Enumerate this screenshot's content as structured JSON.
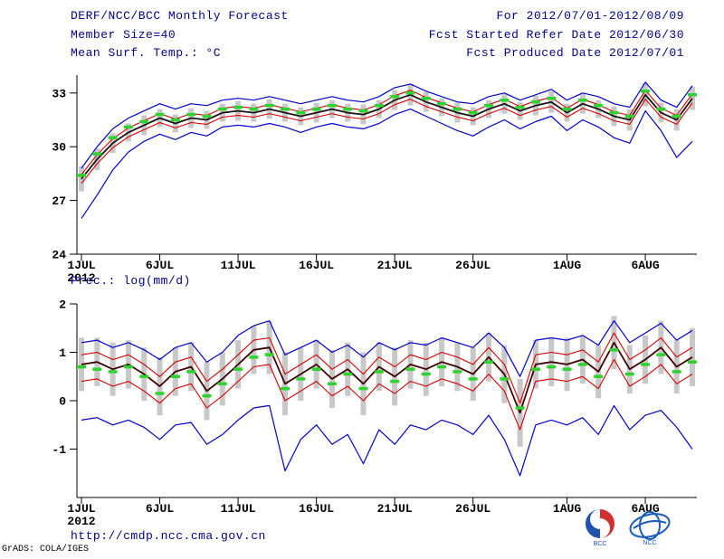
{
  "header": {
    "title": "DERF/NCC/BCC Monthly Forecast",
    "member_size": "Member Size=40",
    "right_line1": "For 2012/07/01-2012/08/09",
    "right_line2": "Fcst Started Refer Date 2012/06/30",
    "right_line3": "Fcst Produced Date 2012/07/01"
  },
  "footer": {
    "url": "http://cmdp.ncc.cma.gov.cn",
    "credit": "GrADS: COLA/IGES",
    "logos": [
      "BCC emblem",
      "NCC emblem"
    ]
  },
  "colors": {
    "header_text": "#00008b",
    "axis_text": "#000000",
    "blue_line": "#0000cd",
    "red_line": "#d40000",
    "mean_line_temp": "#1a1414",
    "mean_line_prec": "#400000",
    "green_marker": "#2fd32f",
    "spread_bar": "#c8c8c8"
  },
  "chart_data": [
    {
      "type": "line",
      "title": "Mean Surf. Temp.: °C",
      "xlabel": "",
      "ylabel": "°C",
      "n_days": 40,
      "ylim": [
        24,
        34
      ],
      "yticks": [
        24,
        27,
        30,
        33
      ],
      "x_ticks": [
        {
          "day": 0,
          "label": "1JUL",
          "sub": "2012"
        },
        {
          "day": 5,
          "label": "6JUL"
        },
        {
          "day": 10,
          "label": "11JUL"
        },
        {
          "day": 15,
          "label": "16JUL"
        },
        {
          "day": 20,
          "label": "21JUL"
        },
        {
          "day": 25,
          "label": "26JUL"
        },
        {
          "day": 31,
          "label": "1AUG"
        },
        {
          "day": 36,
          "label": "6AUG"
        }
      ],
      "series": [
        {
          "name": "member-spread",
          "type": "bar",
          "color": "#c8c8c8",
          "center": [
            28.2,
            29.3,
            30.2,
            30.8,
            31.2,
            31.6,
            31.3,
            31.6,
            31.5,
            31.9,
            32.0,
            31.9,
            32.1,
            31.9,
            31.7,
            31.9,
            32.1,
            31.9,
            31.8,
            32.1,
            32.6,
            32.9,
            32.5,
            32.2,
            31.9,
            31.7,
            32.1,
            32.4,
            32.0,
            32.3,
            32.5,
            31.9,
            32.4,
            32.1,
            31.7,
            31.5,
            32.9,
            31.9,
            31.5,
            32.7
          ],
          "half": [
            0.7,
            0.6,
            0.55,
            0.5,
            0.55,
            0.5,
            0.5,
            0.55,
            0.5,
            0.5,
            0.55,
            0.5,
            0.55,
            0.5,
            0.5,
            0.55,
            0.5,
            0.5,
            0.55,
            0.5,
            0.55,
            0.6,
            0.55,
            0.5,
            0.55,
            0.5,
            0.5,
            0.55,
            0.5,
            0.55,
            0.6,
            0.5,
            0.55,
            0.5,
            0.55,
            0.6,
            0.65,
            0.55,
            0.6,
            0.65
          ]
        },
        {
          "name": "members-max",
          "type": "line",
          "color": "#0000cd",
          "width": 1.2,
          "values": [
            28.8,
            30.0,
            31.0,
            31.6,
            32.0,
            32.4,
            32.1,
            32.4,
            32.3,
            32.6,
            32.7,
            32.6,
            32.8,
            32.6,
            32.4,
            32.6,
            32.8,
            32.6,
            32.5,
            32.8,
            33.3,
            33.5,
            33.1,
            32.8,
            32.5,
            32.4,
            32.8,
            33.0,
            32.6,
            32.9,
            33.2,
            32.6,
            33.0,
            32.8,
            32.4,
            32.2,
            33.6,
            32.6,
            32.2,
            33.4
          ]
        },
        {
          "name": "upper-quartile",
          "type": "line",
          "color": "#d40000",
          "width": 1.1,
          "values": [
            28.45,
            29.55,
            30.45,
            31.05,
            31.45,
            31.85,
            31.55,
            31.85,
            31.75,
            32.15,
            32.25,
            32.15,
            32.35,
            32.15,
            31.95,
            32.15,
            32.35,
            32.15,
            32.05,
            32.35,
            32.85,
            33.15,
            32.75,
            32.45,
            32.15,
            31.95,
            32.35,
            32.65,
            32.25,
            32.55,
            32.75,
            32.15,
            32.65,
            32.35,
            31.95,
            31.75,
            33.15,
            32.15,
            31.75,
            32.95
          ]
        },
        {
          "name": "lower-quartile",
          "type": "line",
          "color": "#d40000",
          "width": 1.1,
          "values": [
            27.95,
            29.05,
            29.95,
            30.55,
            30.95,
            31.35,
            31.05,
            31.35,
            31.25,
            31.65,
            31.75,
            31.65,
            31.85,
            31.65,
            31.45,
            31.65,
            31.85,
            31.65,
            31.55,
            31.85,
            32.35,
            32.65,
            32.25,
            31.95,
            31.65,
            31.45,
            31.85,
            32.15,
            31.75,
            32.05,
            32.25,
            31.65,
            32.15,
            31.85,
            31.45,
            31.25,
            32.65,
            31.65,
            31.25,
            32.45
          ]
        },
        {
          "name": "members-min",
          "type": "line",
          "color": "#0000cd",
          "width": 1.2,
          "values": [
            26.0,
            27.3,
            28.7,
            29.7,
            30.3,
            30.7,
            30.4,
            30.8,
            30.6,
            31.1,
            31.2,
            31.1,
            31.3,
            31.1,
            30.8,
            31.1,
            31.3,
            31.1,
            31.0,
            31.3,
            31.8,
            32.1,
            31.7,
            31.3,
            30.9,
            30.6,
            31.1,
            31.5,
            31.0,
            31.4,
            31.7,
            30.9,
            31.5,
            31.1,
            30.5,
            30.2,
            32.0,
            30.9,
            29.4,
            30.3
          ]
        },
        {
          "name": "ensemble-mean",
          "type": "line",
          "color": "#1a1414",
          "width": 1.8,
          "values": [
            28.2,
            29.3,
            30.2,
            30.8,
            31.2,
            31.6,
            31.3,
            31.6,
            31.5,
            31.9,
            32.0,
            31.9,
            32.1,
            31.9,
            31.7,
            31.9,
            32.1,
            31.9,
            31.8,
            32.1,
            32.6,
            32.9,
            32.5,
            32.2,
            31.9,
            31.7,
            32.1,
            32.4,
            32.0,
            32.3,
            32.5,
            31.9,
            32.4,
            32.1,
            31.7,
            31.5,
            32.9,
            31.9,
            31.5,
            32.7
          ]
        },
        {
          "name": "climatology-marker",
          "type": "dash",
          "color": "#2fd32f",
          "width": 3.5,
          "values": [
            28.4,
            29.6,
            30.5,
            31.1,
            31.4,
            31.8,
            31.5,
            31.8,
            31.7,
            32.1,
            32.2,
            32.1,
            32.3,
            32.1,
            31.9,
            32.1,
            32.3,
            32.1,
            32.0,
            32.3,
            32.8,
            33.0,
            32.7,
            32.4,
            32.1,
            31.9,
            32.3,
            32.6,
            32.2,
            32.5,
            32.7,
            32.1,
            32.6,
            32.3,
            31.9,
            31.7,
            33.1,
            32.1,
            31.7,
            32.9
          ]
        }
      ]
    },
    {
      "type": "line",
      "title": "Prec.: log(mm/d)",
      "xlabel": "",
      "ylabel": "log(mm/d)",
      "n_days": 40,
      "ylim": [
        -2,
        2
      ],
      "yticks": [
        -1,
        0,
        1,
        2
      ],
      "x_ticks": [
        {
          "day": 0,
          "label": "1JUL",
          "sub": "2012"
        },
        {
          "day": 5,
          "label": "6JUL"
        },
        {
          "day": 10,
          "label": "11JUL"
        },
        {
          "day": 15,
          "label": "16JUL"
        },
        {
          "day": 20,
          "label": "21JUL"
        },
        {
          "day": 25,
          "label": "26JUL"
        },
        {
          "day": 31,
          "label": "1AUG"
        },
        {
          "day": 36,
          "label": "6AUG"
        }
      ],
      "series": [
        {
          "name": "member-spread",
          "type": "bar",
          "color": "#c8c8c8",
          "center": [
            0.75,
            0.8,
            0.65,
            0.75,
            0.55,
            0.3,
            0.6,
            0.7,
            0.2,
            0.45,
            0.75,
            1.05,
            1.1,
            0.35,
            0.55,
            0.75,
            0.45,
            0.65,
            0.35,
            0.7,
            0.5,
            0.75,
            0.65,
            0.8,
            0.7,
            0.55,
            0.9,
            0.55,
            -0.25,
            0.75,
            0.8,
            0.75,
            0.85,
            0.6,
            1.2,
            0.65,
            0.85,
            1.1,
            0.7,
            0.9
          ],
          "half": [
            0.55,
            0.5,
            0.55,
            0.5,
            0.55,
            0.6,
            0.5,
            0.5,
            0.6,
            0.55,
            0.5,
            0.5,
            0.55,
            0.65,
            0.55,
            0.5,
            0.6,
            0.55,
            0.65,
            0.5,
            0.6,
            0.5,
            0.55,
            0.5,
            0.5,
            0.55,
            0.5,
            0.6,
            0.7,
            0.5,
            0.5,
            0.55,
            0.5,
            0.55,
            0.55,
            0.5,
            0.5,
            0.55,
            0.55,
            0.6
          ]
        },
        {
          "name": "members-max",
          "type": "line",
          "color": "#0000cd",
          "width": 1.2,
          "values": [
            1.2,
            1.25,
            1.1,
            1.2,
            1.05,
            0.85,
            1.1,
            1.2,
            0.8,
            1.0,
            1.35,
            1.55,
            1.65,
            0.95,
            1.1,
            1.25,
            1.0,
            1.15,
            0.9,
            1.2,
            1.05,
            1.2,
            1.15,
            1.3,
            1.2,
            1.1,
            1.4,
            1.1,
            0.5,
            1.25,
            1.3,
            1.25,
            1.35,
            1.15,
            1.65,
            1.2,
            1.4,
            1.6,
            1.25,
            1.45
          ]
        },
        {
          "name": "upper-quartile",
          "type": "line",
          "color": "#d40000",
          "width": 1.1,
          "values": [
            0.95,
            1.0,
            0.85,
            0.95,
            0.75,
            0.5,
            0.8,
            0.9,
            0.4,
            0.65,
            0.95,
            1.25,
            1.3,
            0.55,
            0.75,
            0.95,
            0.65,
            0.85,
            0.55,
            0.9,
            0.7,
            0.95,
            0.85,
            1.0,
            0.9,
            0.75,
            1.1,
            0.75,
            -0.05,
            0.95,
            1.0,
            0.95,
            1.05,
            0.8,
            1.4,
            0.85,
            1.05,
            1.3,
            0.9,
            1.1
          ]
        },
        {
          "name": "lower-quartile",
          "type": "line",
          "color": "#d40000",
          "width": 1.1,
          "values": [
            0.4,
            0.45,
            0.3,
            0.4,
            0.2,
            -0.05,
            0.25,
            0.35,
            -0.15,
            0.1,
            0.4,
            0.7,
            0.75,
            0.0,
            0.2,
            0.4,
            0.1,
            0.3,
            0.0,
            0.35,
            0.15,
            0.4,
            0.3,
            0.45,
            0.35,
            0.2,
            0.55,
            0.2,
            -0.6,
            0.4,
            0.45,
            0.4,
            0.5,
            0.25,
            0.85,
            0.3,
            0.5,
            0.75,
            0.35,
            0.55
          ]
        },
        {
          "name": "members-min",
          "type": "line",
          "color": "#0000cd",
          "width": 1.2,
          "values": [
            -0.4,
            -0.35,
            -0.5,
            -0.4,
            -0.55,
            -0.8,
            -0.5,
            -0.45,
            -0.9,
            -0.7,
            -0.4,
            -0.15,
            -0.1,
            -1.45,
            -0.8,
            -0.5,
            -0.9,
            -0.7,
            -1.3,
            -0.6,
            -0.9,
            -0.5,
            -0.6,
            -0.4,
            -0.5,
            -0.7,
            -0.3,
            -0.8,
            -1.55,
            -0.5,
            -0.4,
            -0.5,
            -0.35,
            -0.7,
            -0.1,
            -0.6,
            -0.3,
            -0.2,
            -0.55,
            -1.0
          ]
        },
        {
          "name": "ensemble-mean",
          "type": "line",
          "color": "#400000",
          "width": 1.8,
          "values": [
            0.75,
            0.8,
            0.65,
            0.75,
            0.55,
            0.3,
            0.6,
            0.7,
            0.2,
            0.45,
            0.75,
            1.05,
            1.1,
            0.35,
            0.55,
            0.75,
            0.45,
            0.65,
            0.35,
            0.7,
            0.5,
            0.75,
            0.65,
            0.8,
            0.7,
            0.55,
            0.9,
            0.55,
            -0.25,
            0.75,
            0.8,
            0.75,
            0.85,
            0.6,
            1.2,
            0.65,
            0.85,
            1.1,
            0.7,
            0.9
          ]
        },
        {
          "name": "climatology-marker",
          "type": "dash",
          "color": "#2fd32f",
          "width": 3.5,
          "values": [
            0.7,
            0.65,
            0.6,
            0.7,
            0.5,
            0.15,
            0.5,
            0.6,
            0.1,
            0.35,
            0.65,
            0.9,
            0.95,
            0.25,
            0.45,
            0.65,
            0.35,
            0.55,
            0.25,
            0.6,
            0.4,
            0.65,
            0.55,
            0.7,
            0.6,
            0.45,
            0.8,
            0.45,
            -0.15,
            0.65,
            0.7,
            0.65,
            0.75,
            0.5,
            1.05,
            0.55,
            0.75,
            0.95,
            0.6,
            0.8
          ]
        }
      ]
    }
  ]
}
